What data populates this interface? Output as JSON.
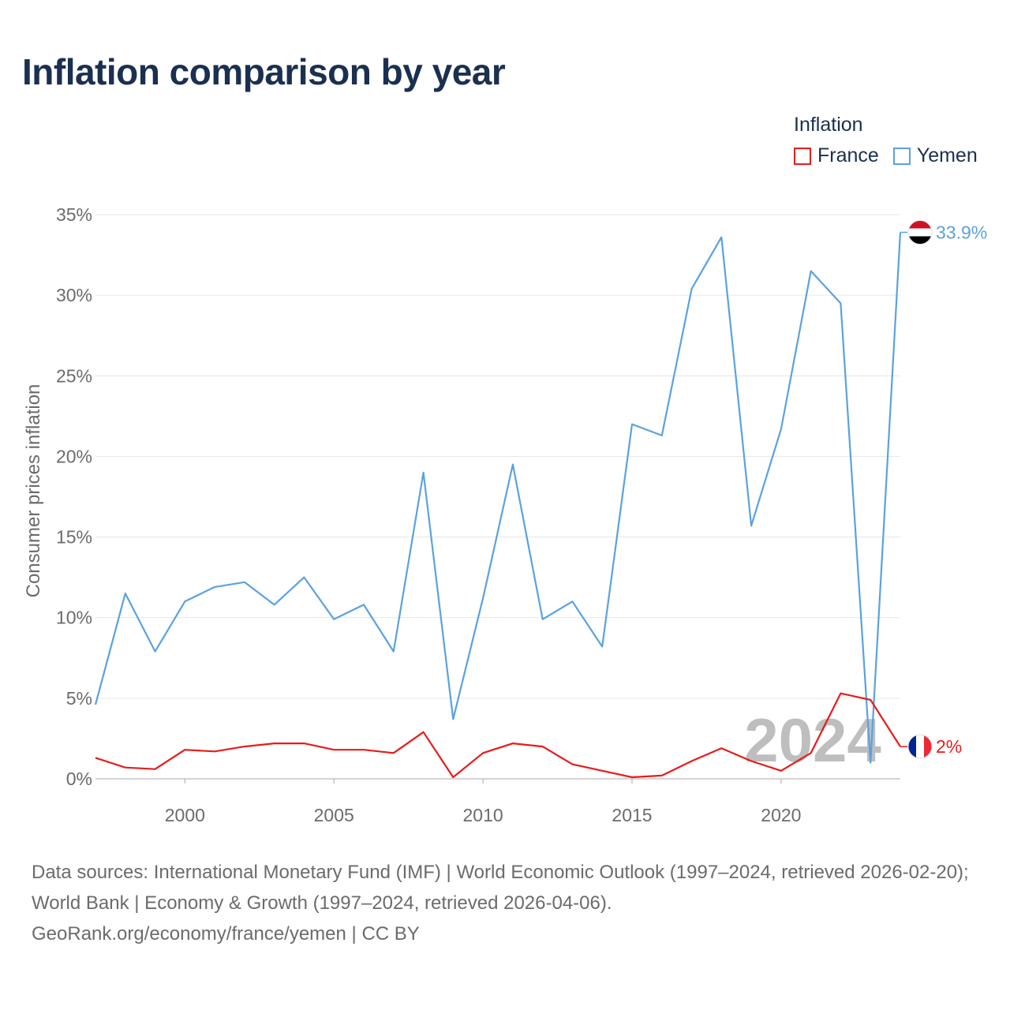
{
  "chart_data": {
    "type": "line",
    "title": "Inflation comparison by year",
    "ylabel": "Consumer prices inflation",
    "xlabel": "",
    "legend_title": "Inflation",
    "legend_position": "top-right",
    "xlim": [
      1997,
      2024
    ],
    "ylim": [
      0,
      35
    ],
    "yticks": [
      0,
      5,
      10,
      15,
      20,
      25,
      30,
      35
    ],
    "ytick_labels": [
      "0%",
      "5%",
      "10%",
      "15%",
      "20%",
      "25%",
      "30%",
      "35%"
    ],
    "xticks": [
      2000,
      2005,
      2010,
      2015,
      2020
    ],
    "xtick_labels": [
      "2000",
      "2005",
      "2010",
      "2015",
      "2020"
    ],
    "grid": true,
    "watermark_year": "2024",
    "x": [
      1997,
      1998,
      1999,
      2000,
      2001,
      2002,
      2003,
      2004,
      2005,
      2006,
      2007,
      2008,
      2009,
      2010,
      2011,
      2012,
      2013,
      2014,
      2015,
      2016,
      2017,
      2018,
      2019,
      2020,
      2021,
      2022,
      2023,
      2024
    ],
    "series": [
      {
        "name": "France",
        "color": "#e81b1b",
        "end_label": "2%",
        "values": [
          1.3,
          0.7,
          0.6,
          1.8,
          1.7,
          2.0,
          2.2,
          2.2,
          1.8,
          1.8,
          1.6,
          2.9,
          0.1,
          1.6,
          2.2,
          2.0,
          0.9,
          0.5,
          0.1,
          0.2,
          1.1,
          1.9,
          1.1,
          0.5,
          1.6,
          5.3,
          4.9,
          2.0
        ]
      },
      {
        "name": "Yemen",
        "color": "#5aa2e0",
        "end_label": "33.9%",
        "values": [
          4.6,
          11.5,
          7.9,
          11.0,
          11.9,
          12.2,
          10.8,
          12.5,
          9.9,
          10.8,
          7.9,
          19.0,
          3.7,
          11.2,
          19.5,
          9.9,
          11.0,
          8.2,
          22.0,
          21.3,
          30.4,
          33.6,
          15.7,
          21.7,
          31.5,
          29.5,
          1.0,
          33.9
        ]
      }
    ]
  },
  "footer": {
    "source_line1": "Data sources: International Monetary Fund (IMF) | World Economic Outlook (1997–2024, retrieved 2026-02-20); World Bank | Economy & Growth (1997–2024, retrieved 2026-04-06).",
    "source_line2": "GeoRank.org/economy/france/yemen | CC BY"
  }
}
